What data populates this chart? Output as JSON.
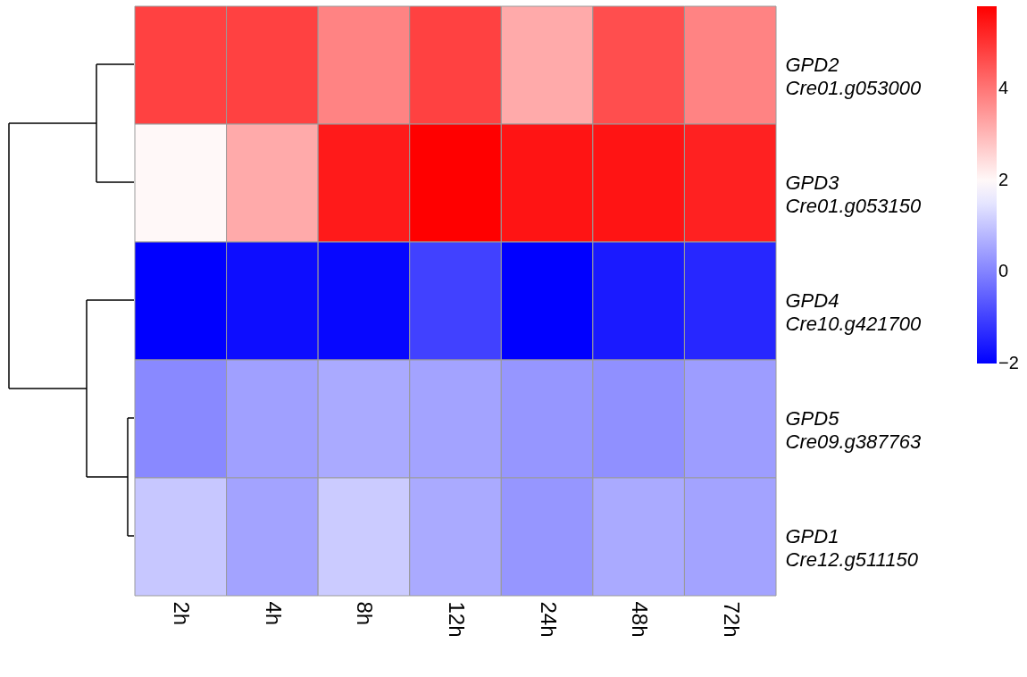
{
  "chart_data": {
    "type": "heatmap",
    "categories": [
      "2h",
      "4h",
      "8h",
      "12h",
      "24h",
      "48h",
      "72h"
    ],
    "y_categories": [
      "GPD2",
      "GPD3",
      "GPD4",
      "GPD5",
      "GPD1"
    ],
    "y2_categories": [
      "Cre01.g053000",
      "Cre01.g053150",
      "Cre10.g421700",
      "Cre09.g387763",
      "Cre12.g511150"
    ],
    "cells": [
      [
        4.8,
        4.8,
        3.8,
        4.8,
        3.2,
        4.6,
        3.8
      ],
      [
        2.0,
        3.2,
        5.4,
        5.8,
        5.5,
        5.5,
        5.3
      ],
      [
        -2.0,
        -1.8,
        -1.9,
        -1.0,
        -2.0,
        -1.6,
        -1.4
      ],
      [
        0.1,
        0.45,
        0.6,
        0.5,
        0.3,
        0.2,
        0.4
      ],
      [
        1.05,
        0.5,
        1.1,
        0.6,
        0.3,
        0.6,
        0.5
      ]
    ],
    "clim": [
      -2,
      5.8
    ],
    "cticks": [
      -2,
      0,
      2,
      4
    ]
  }
}
